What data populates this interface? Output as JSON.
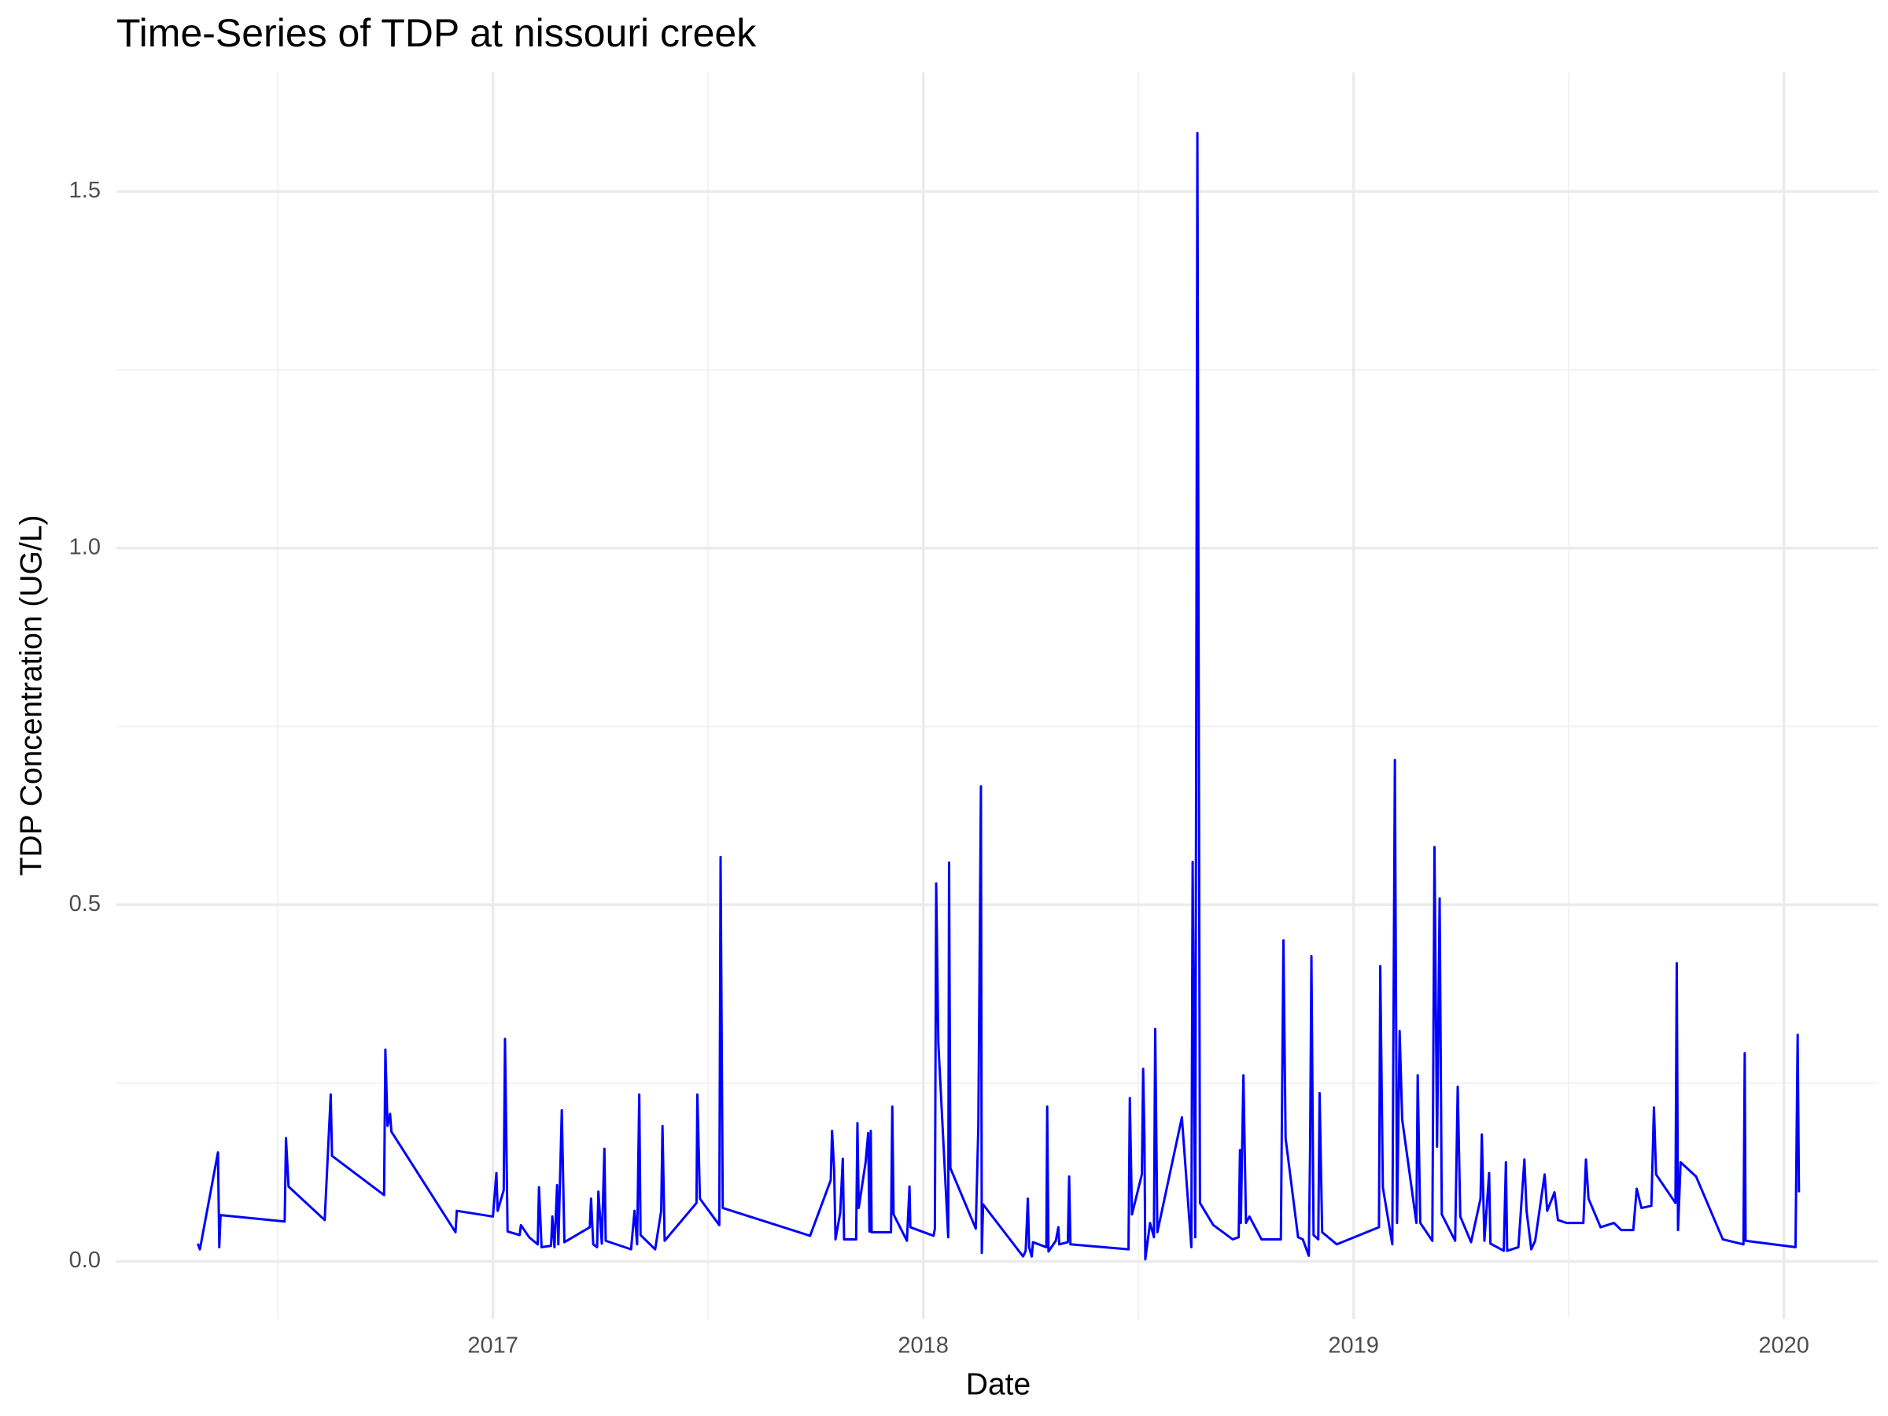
{
  "chart_data": {
    "type": "line",
    "title": "Time-Series of TDP at nissouri creek",
    "x_label": "Date",
    "y_label": "TDP Concentration (UG/L)",
    "color": "#0000ff",
    "grid": true,
    "xlim": [
      2016.125,
      2020.22
    ],
    "ylim": [
      -0.081,
      1.667
    ],
    "xticks": [
      2017,
      2018,
      2019,
      2020
    ],
    "yticks": [
      {
        "value": 0,
        "label": "0.0"
      },
      {
        "value": 0.5,
        "label": "0.5"
      },
      {
        "value": 1,
        "label": "1.0"
      },
      {
        "value": 1.5,
        "label": "1.5"
      }
    ],
    "minor_xticks": [
      2016.5,
      2017.5,
      2018.5,
      2019.5
    ],
    "minor_yticks": [
      0.25,
      0.75,
      1.25
    ],
    "x": [
      2016.314,
      2016.319,
      2016.361,
      2016.364,
      2016.367,
      2016.516,
      2016.519,
      2016.525,
      2016.609,
      2016.623,
      2016.626,
      2016.747,
      2016.75,
      2016.755,
      2016.761,
      2016.764,
      2016.913,
      2016.916,
      2017.0,
      2017.008,
      2017.011,
      2017.025,
      2017.028,
      2017.034,
      2017.062,
      2017.065,
      2017.084,
      2017.104,
      2017.107,
      2017.113,
      2017.135,
      2017.138,
      2017.143,
      2017.149,
      2017.152,
      2017.16,
      2017.166,
      2017.225,
      2017.228,
      2017.233,
      2017.242,
      2017.245,
      2017.253,
      2017.259,
      2017.262,
      2017.321,
      2017.329,
      2017.335,
      2017.34,
      2017.343,
      2017.377,
      2017.391,
      2017.394,
      2017.399,
      2017.473,
      2017.475,
      2017.481,
      2017.526,
      2017.529,
      2017.534,
      2017.737,
      2017.785,
      2017.788,
      2017.793,
      2017.796,
      2017.807,
      2017.813,
      2017.816,
      2017.844,
      2017.847,
      2017.85,
      2017.866,
      2017.872,
      2017.875,
      2017.878,
      2017.88,
      2017.925,
      2017.928,
      2017.931,
      2017.962,
      2017.968,
      2017.97,
      2018.024,
      2018.027,
      2018.03,
      2018.035,
      2018.058,
      2018.06,
      2018.063,
      2018.122,
      2018.128,
      2018.134,
      2018.136,
      2018.139,
      2018.232,
      2018.238,
      2018.243,
      2018.246,
      2018.252,
      2018.255,
      2018.286,
      2018.288,
      2018.291,
      2018.308,
      2018.314,
      2018.316,
      2018.336,
      2018.339,
      2018.342,
      2018.477,
      2018.48,
      2018.485,
      2018.508,
      2018.511,
      2018.514,
      2018.516,
      2018.527,
      2018.536,
      2018.539,
      2018.544,
      2018.601,
      2018.623,
      2018.626,
      2018.632,
      2018.637,
      2018.643,
      2018.674,
      2018.719,
      2018.733,
      2018.736,
      2018.738,
      2018.744,
      2018.75,
      2018.758,
      2018.786,
      2018.831,
      2018.837,
      2018.842,
      2018.871,
      2018.882,
      2018.896,
      2018.899,
      2018.902,
      2018.907,
      2018.918,
      2018.921,
      2018.927,
      2018.961,
      2019.059,
      2019.062,
      2019.068,
      2019.09,
      2019.096,
      2019.101,
      2019.107,
      2019.113,
      2019.146,
      2019.149,
      2019.155,
      2019.183,
      2019.188,
      2019.194,
      2019.2,
      2019.205,
      2019.236,
      2019.242,
      2019.248,
      2019.273,
      2019.295,
      2019.298,
      2019.304,
      2019.315,
      2019.318,
      2019.349,
      2019.354,
      2019.357,
      2019.383,
      2019.397,
      2019.402,
      2019.413,
      2019.422,
      2019.444,
      2019.45,
      2019.467,
      2019.475,
      2019.495,
      2019.534,
      2019.54,
      2019.546,
      2019.574,
      2019.605,
      2019.622,
      2019.65,
      2019.658,
      2019.669,
      2019.692,
      2019.698,
      2019.703,
      2019.748,
      2019.751,
      2019.754,
      2019.76,
      2019.796,
      2019.858,
      2019.906,
      2019.909,
      2019.911,
      2020.027,
      2020.032,
      2020.035
    ],
    "values": [
      0.025,
      0.017,
      0.153,
      0.02,
      0.065,
      0.056,
      0.173,
      0.105,
      0.058,
      0.234,
      0.148,
      0.093,
      0.297,
      0.19,
      0.207,
      0.182,
      0.041,
      0.071,
      0.063,
      0.124,
      0.071,
      0.1,
      0.312,
      0.042,
      0.037,
      0.051,
      0.034,
      0.024,
      0.104,
      0.02,
      0.022,
      0.063,
      0.02,
      0.107,
      0.024,
      0.212,
      0.027,
      0.048,
      0.088,
      0.024,
      0.02,
      0.098,
      0.025,
      0.158,
      0.029,
      0.017,
      0.071,
      0.024,
      0.234,
      0.037,
      0.017,
      0.071,
      0.19,
      0.029,
      0.082,
      0.234,
      0.088,
      0.051,
      0.567,
      0.075,
      0.036,
      0.114,
      0.183,
      0.127,
      0.031,
      0.068,
      0.144,
      0.031,
      0.031,
      0.194,
      0.075,
      0.139,
      0.18,
      0.042,
      0.183,
      0.041,
      0.041,
      0.217,
      0.066,
      0.029,
      0.105,
      0.048,
      0.036,
      0.046,
      0.53,
      0.306,
      0.034,
      0.559,
      0.131,
      0.046,
      0.19,
      0.666,
      0.012,
      0.08,
      0.007,
      0.015,
      0.088,
      0.02,
      0.007,
      0.027,
      0.02,
      0.217,
      0.014,
      0.029,
      0.048,
      0.024,
      0.027,
      0.119,
      0.024,
      0.017,
      0.229,
      0.066,
      0.122,
      0.27,
      0.173,
      0.003,
      0.054,
      0.034,
      0.326,
      0.041,
      0.202,
      0.02,
      0.56,
      0.034,
      1.582,
      0.082,
      0.051,
      0.031,
      0.034,
      0.156,
      0.054,
      0.261,
      0.054,
      0.063,
      0.031,
      0.031,
      0.45,
      0.173,
      0.034,
      0.031,
      0.008,
      0.16,
      0.428,
      0.037,
      0.031,
      0.236,
      0.041,
      0.024,
      0.048,
      0.414,
      0.104,
      0.024,
      0.703,
      0.054,
      0.323,
      0.199,
      0.054,
      0.261,
      0.054,
      0.029,
      0.581,
      0.161,
      0.509,
      0.066,
      0.029,
      0.245,
      0.063,
      0.027,
      0.088,
      0.178,
      0.029,
      0.124,
      0.025,
      0.015,
      0.139,
      0.015,
      0.02,
      0.143,
      0.071,
      0.017,
      0.029,
      0.122,
      0.071,
      0.097,
      0.058,
      0.054,
      0.054,
      0.143,
      0.088,
      0.048,
      0.054,
      0.044,
      0.044,
      0.102,
      0.075,
      0.078,
      0.216,
      0.122,
      0.082,
      0.418,
      0.044,
      0.139,
      0.119,
      0.031,
      0.024,
      0.292,
      0.029,
      0.02,
      0.318,
      0.097
    ]
  }
}
